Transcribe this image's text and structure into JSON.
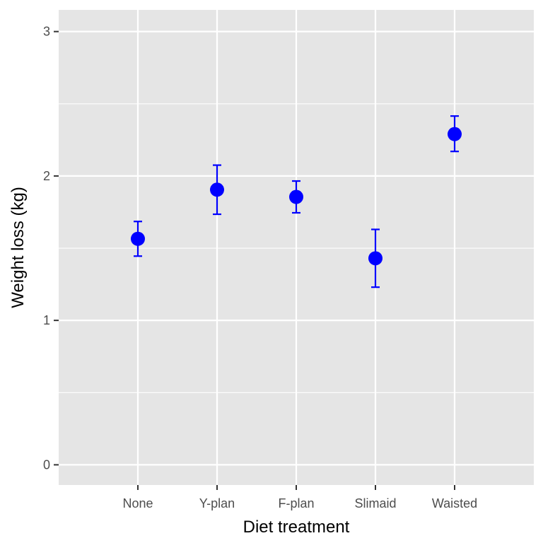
{
  "chart_data": {
    "type": "scatter",
    "xlabel": "Diet treatment",
    "ylabel": "Weight loss (kg)",
    "categories": [
      "None",
      "Y-plan",
      "F-plan",
      "Slimaid",
      "Waisted"
    ],
    "values": [
      1.565,
      1.905,
      1.855,
      1.43,
      2.29
    ],
    "error_lower": [
      1.445,
      1.735,
      1.745,
      1.23,
      2.17
    ],
    "error_upper": [
      1.685,
      2.075,
      1.965,
      1.63,
      2.415
    ],
    "ylim": [
      -0.14,
      3.15
    ],
    "y_ticks": [
      0,
      1,
      2,
      3
    ],
    "y_tick_labels": [
      "0",
      "1",
      "2",
      "3"
    ],
    "grid": true,
    "colors": {
      "point": "#0000FF",
      "panel": "#E5E5E5",
      "grid": "#FFFFFF",
      "tick": "#333333"
    }
  }
}
